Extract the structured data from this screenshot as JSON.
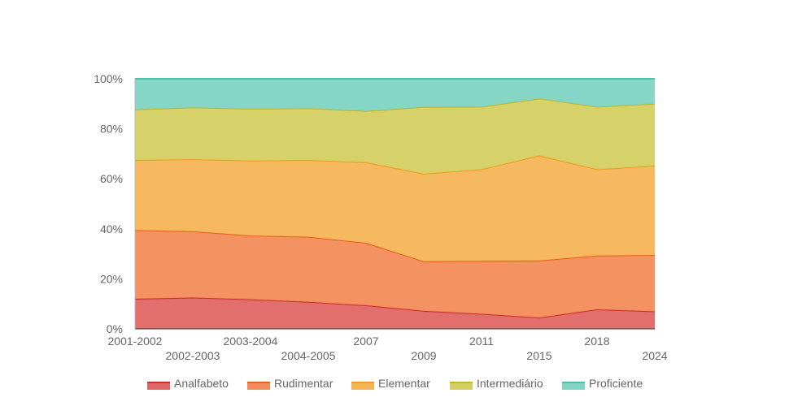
{
  "chart_data": {
    "type": "area",
    "stacked": true,
    "percent": true,
    "categories": [
      "2001-2002",
      "2002-2003",
      "2003-2004",
      "2004-2005",
      "2007",
      "2009",
      "2011",
      "2015",
      "2018",
      "2024"
    ],
    "yticks": [
      "0%",
      "20%",
      "40%",
      "60%",
      "80%",
      "100%"
    ],
    "ylim": [
      0,
      100
    ],
    "grid": true,
    "legend_position": "bottom",
    "series": [
      {
        "name": "Analfabeto",
        "color": "#e06666",
        "line": "#c9302c",
        "values": [
          12,
          12.5,
          11.8,
          10.8,
          9.4,
          7.2,
          6,
          4.5,
          7.8,
          7
        ]
      },
      {
        "name": "Rudimentar",
        "color": "#f38c5a",
        "line": "#e8601c",
        "values": [
          27.5,
          26.5,
          25.5,
          26,
          25,
          19.8,
          21.2,
          22.8,
          21.5,
          22.5
        ]
      },
      {
        "name": "Elementar",
        "color": "#f5b557",
        "line": "#f39c25",
        "values": [
          28,
          28.8,
          30,
          30.7,
          32.2,
          35,
          36.6,
          42,
          34.5,
          35.7
        ]
      },
      {
        "name": "Intermediário",
        "color": "#d4cf60",
        "line": "#c2b830",
        "values": [
          20.2,
          20.7,
          20.7,
          20.7,
          20.5,
          26.7,
          25,
          22.8,
          25,
          24.8
        ]
      },
      {
        "name": "Proficiente",
        "color": "#80d4c4",
        "line": "#4fc0a8",
        "values": [
          12.3,
          11.5,
          12,
          11.8,
          12.9,
          11.3,
          11.2,
          7.9,
          11.2,
          10
        ]
      }
    ]
  }
}
